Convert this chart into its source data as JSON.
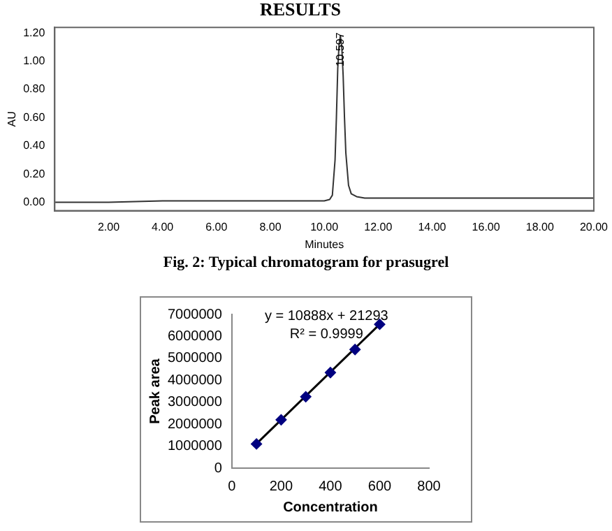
{
  "chart_data": [
    {
      "type": "line",
      "title": "RESULTS",
      "xlabel": "Minutes",
      "ylabel": "AU",
      "x": [
        0,
        2,
        4,
        6,
        8,
        9,
        10,
        10.2,
        10.3,
        10.4,
        10.45,
        10.5,
        10.55,
        10.597,
        10.65,
        10.7,
        10.75,
        10.8,
        10.9,
        11,
        11.2,
        11.5,
        12,
        14,
        16,
        18,
        20
      ],
      "series": [
        {
          "color": "#333333",
          "values": [
            0,
            0,
            0.01,
            0.01,
            0.01,
            0.01,
            0.01,
            0.02,
            0.05,
            0.3,
            0.6,
            0.95,
            1.12,
            1.18,
            1.1,
            0.9,
            0.6,
            0.35,
            0.12,
            0.06,
            0.04,
            0.03,
            0.03,
            0.03,
            0.03,
            0.03,
            0.03
          ]
        }
      ],
      "xlim": [
        0,
        20
      ],
      "xticks": [
        {
          "value": 2,
          "label": "2.00"
        },
        {
          "value": 4,
          "label": "4.00"
        },
        {
          "value": 6,
          "label": "6.00"
        },
        {
          "value": 8,
          "label": "8.00"
        },
        {
          "value": 10,
          "label": "10.00"
        },
        {
          "value": 12,
          "label": "12.00"
        },
        {
          "value": 14,
          "label": "14.00"
        },
        {
          "value": 16,
          "label": "16.00"
        },
        {
          "value": 18,
          "label": "18.00"
        },
        {
          "value": 20,
          "label": "20.00"
        }
      ],
      "ylim": [
        -0.06,
        1.24
      ],
      "yticks": [
        {
          "value": 0,
          "label": "0.00"
        },
        {
          "value": 0.2,
          "label": "0.20"
        },
        {
          "value": 0.4,
          "label": "0.40"
        },
        {
          "value": 0.6,
          "label": "0.60"
        },
        {
          "value": 0.8,
          "label": "0.80"
        },
        {
          "value": 1,
          "label": "1.00"
        },
        {
          "value": 1.2,
          "label": "1.20"
        }
      ],
      "annotations": [
        {
          "text": "10.597",
          "x": 10.597,
          "y": 1.18
        },
        "Fig. 2: Typical chromatogram for prasugrel"
      ],
      "grid": false,
      "legend": false,
      "marker": "none"
    },
    {
      "type": "scatter",
      "xlabel": "Concentration",
      "ylabel": "Peak area",
      "series": [
        {
          "type": "scatter",
          "color": "#000080",
          "marker": "diamond",
          "x": [
            100,
            200,
            300,
            400,
            500,
            600
          ],
          "values": [
            1100000,
            2200000,
            3250000,
            4350000,
            5400000,
            6550000
          ]
        },
        {
          "type": "line",
          "color": "#000000",
          "marker": "none",
          "x": [
            100,
            600
          ],
          "values": [
            1110000,
            6550000
          ]
        }
      ],
      "xlim": [
        0,
        800
      ],
      "xticks": [
        0,
        200,
        400,
        600,
        800
      ],
      "ylim": [
        0,
        7000000
      ],
      "yticks": [
        0,
        1000000,
        2000000,
        3000000,
        4000000,
        5000000,
        6000000,
        7000000
      ],
      "annotations": [
        "y = 10888x + 21293",
        "R² = 0.9999"
      ],
      "grid": false,
      "legend": false
    }
  ]
}
